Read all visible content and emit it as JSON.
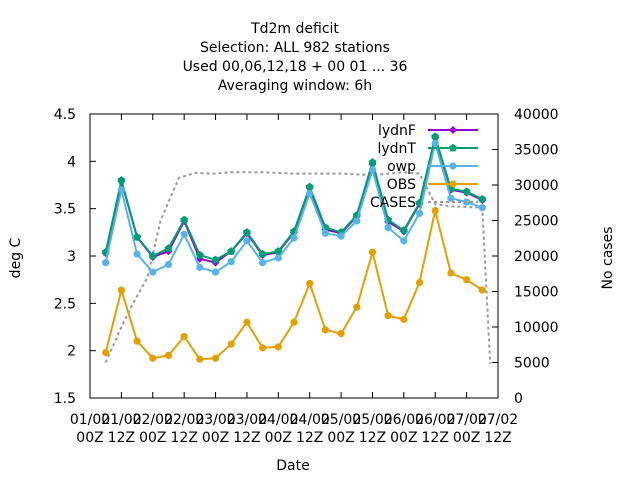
{
  "chart_data": {
    "type": "line",
    "title_lines": [
      "Td2m deficit",
      "Selection: ALL    982 stations",
      "Used  00,06,12,18 + 00 01 ... 36",
      "Averaging window:  6h"
    ],
    "xlabel": "Date",
    "ylabel": "deg C",
    "y2label": "No cases",
    "x_ticks": [
      {
        "top": "01/02",
        "bottom": "00Z"
      },
      {
        "top": "01/02",
        "bottom": "12Z"
      },
      {
        "top": "02/02",
        "bottom": "00Z"
      },
      {
        "top": "02/02",
        "bottom": "12Z"
      },
      {
        "top": "03/02",
        "bottom": "00Z"
      },
      {
        "top": "03/02",
        "bottom": "12Z"
      },
      {
        "top": "04/02",
        "bottom": "00Z"
      },
      {
        "top": "04/02",
        "bottom": "12Z"
      },
      {
        "top": "05/02",
        "bottom": "00Z"
      },
      {
        "top": "05/02",
        "bottom": "12Z"
      },
      {
        "top": "06/02",
        "bottom": "00Z"
      },
      {
        "top": "06/02",
        "bottom": "12Z"
      },
      {
        "top": "07/02",
        "bottom": "00Z"
      },
      {
        "top": "07/02",
        "bottom": "12Z"
      }
    ],
    "x_range_hours": [
      0,
      156
    ],
    "ylim": [
      1.5,
      4.5
    ],
    "y_ticks": [
      "1.5",
      "2",
      "2.5",
      "3",
      "3.5",
      "4",
      "4.5"
    ],
    "y2lim": [
      0,
      40000
    ],
    "y2_ticks": [
      "0",
      "5000",
      "10000",
      "15000",
      "20000",
      "25000",
      "30000",
      "35000",
      "40000"
    ],
    "legend_position": "top-right",
    "x_hours": [
      6,
      12,
      18,
      24,
      30,
      36,
      42,
      48,
      54,
      60,
      66,
      72,
      78,
      84,
      90,
      96,
      102,
      108,
      114,
      120,
      126,
      132,
      138,
      144,
      150
    ],
    "series": [
      {
        "name": "lydnF",
        "color": "#9400d3",
        "marker": "diamond",
        "values": [
          3.03,
          3.79,
          3.2,
          2.99,
          3.05,
          3.37,
          2.97,
          2.93,
          3.05,
          3.24,
          3.01,
          3.04,
          3.25,
          3.72,
          3.28,
          3.24,
          3.42,
          3.97,
          3.36,
          3.26,
          3.55,
          4.25,
          3.7,
          3.67,
          3.59
        ]
      },
      {
        "name": "lydnT",
        "color": "#009e73",
        "marker": "pentagon",
        "values": [
          3.04,
          3.8,
          3.2,
          3.0,
          3.08,
          3.38,
          3.01,
          2.96,
          3.05,
          3.25,
          3.02,
          3.05,
          3.26,
          3.73,
          3.3,
          3.25,
          3.43,
          3.99,
          3.38,
          3.27,
          3.56,
          4.26,
          3.71,
          3.68,
          3.6
        ]
      },
      {
        "name": "owp",
        "color": "#56b4e9",
        "marker": "circle",
        "values": [
          2.93,
          3.7,
          3.02,
          2.83,
          2.91,
          3.23,
          2.88,
          2.83,
          2.94,
          3.16,
          2.93,
          2.98,
          3.19,
          3.66,
          3.24,
          3.21,
          3.37,
          3.91,
          3.3,
          3.16,
          3.45,
          4.19,
          3.61,
          3.57,
          3.51
        ]
      },
      {
        "name": "OBS",
        "color": "#e69f00",
        "marker": "circle",
        "values": [
          1.98,
          2.64,
          2.1,
          1.92,
          1.95,
          2.15,
          1.91,
          1.92,
          2.07,
          2.3,
          2.03,
          2.04,
          2.3,
          2.71,
          2.22,
          2.18,
          2.46,
          3.04,
          2.37,
          2.33,
          2.72,
          3.48,
          2.82,
          2.75,
          2.64
        ]
      }
    ],
    "cases": {
      "name": "CASES",
      "color": "#999999",
      "axis": "y2",
      "points": [
        [
          6,
          5000
        ],
        [
          12,
          10000
        ],
        [
          16,
          13000
        ],
        [
          22,
          17000
        ],
        [
          27,
          25000
        ],
        [
          34,
          31000
        ],
        [
          40,
          31700
        ],
        [
          48,
          31600
        ],
        [
          54,
          31800
        ],
        [
          66,
          31800
        ],
        [
          78,
          31600
        ],
        [
          96,
          31600
        ],
        [
          108,
          31400
        ],
        [
          120,
          31800
        ],
        [
          126,
          31600
        ],
        [
          132,
          27300
        ],
        [
          138,
          27000
        ],
        [
          150,
          26800
        ],
        [
          153,
          4800
        ]
      ]
    }
  }
}
